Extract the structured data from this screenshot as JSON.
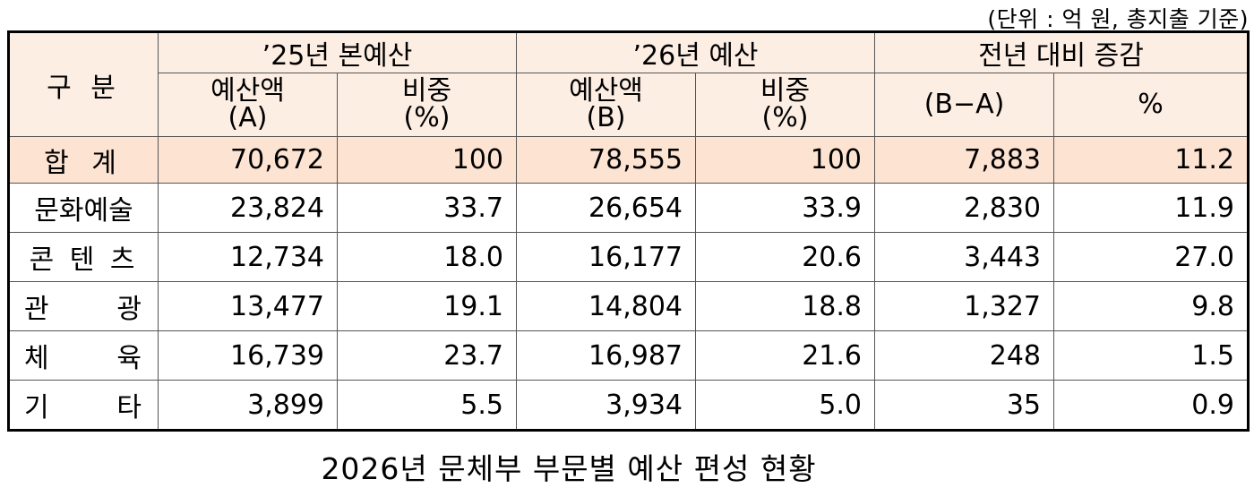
{
  "unit_note": "(단위 : 억 원, 총지출 기준)",
  "header": {
    "category": "구 분",
    "group_2025": "’25년 본예산",
    "group_2026": "’26년 예산",
    "group_change": "전년 대비 증감",
    "budget_a_line1": "예산액",
    "budget_a_line2": "(A)",
    "share_line1": "비중",
    "share_line2": "(%)",
    "budget_b_line1": "예산액",
    "budget_b_line2": "(B)",
    "change_amount": "(B−A)",
    "change_pct": "%"
  },
  "rows": [
    {
      "label": "합 계",
      "a": "70,672",
      "share_a": "100",
      "b": "78,555",
      "share_b": "100",
      "diff": "7,883",
      "pct": "11.2"
    },
    {
      "label": "문화예술",
      "a": "23,824",
      "share_a": "33.7",
      "b": "26,654",
      "share_b": "33.9",
      "diff": "2,830",
      "pct": "11.9"
    },
    {
      "label": "콘 텐 츠",
      "a": "12,734",
      "share_a": "18.0",
      "b": "16,177",
      "share_b": "20.6",
      "diff": "3,443",
      "pct": "27.0"
    },
    {
      "label_left": "관",
      "label_right": "광",
      "a": "13,477",
      "share_a": "19.1",
      "b": "14,804",
      "share_b": "18.8",
      "diff": "1,327",
      "pct": "9.8"
    },
    {
      "label_left": "체",
      "label_right": "육",
      "a": "16,739",
      "share_a": "23.7",
      "b": "16,987",
      "share_b": "21.6",
      "diff": "248",
      "pct": "1.5"
    },
    {
      "label_left": "기",
      "label_right": "타",
      "a": "3,899",
      "share_a": "5.5",
      "b": "3,934",
      "share_b": "5.0",
      "diff": "35",
      "pct": "0.9"
    }
  ],
  "caption": "2026년 문체부 부문별 예산 편성 현황"
}
